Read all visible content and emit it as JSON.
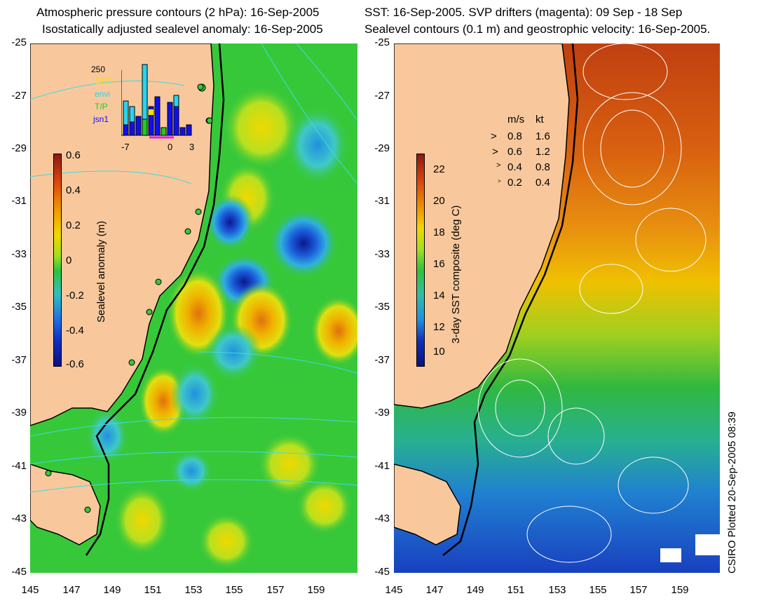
{
  "left_panel": {
    "title_line1": "Atmospheric pressure contours (2 hPa): 16-Sep-2005",
    "title_line2": "Isostatically adjusted sealevel anomaly: 16-Sep-2005",
    "colorbar": {
      "label": "Sealevel anomaly (m)",
      "ticks": [
        "0.6",
        "0.4",
        "0.2",
        "0",
        "-0.2",
        "-0.4",
        "-0.6"
      ]
    },
    "histogram": {
      "count_label": "250",
      "legend": [
        {
          "label": "GFO",
          "color": "#f5e000"
        },
        {
          "label": "envi",
          "color": "#29d4f0"
        },
        {
          "label": "T/P",
          "color": "#22cc22"
        },
        {
          "label": "jsn1",
          "color": "#1010ee"
        }
      ],
      "x_ticks": [
        "-7",
        "0",
        "3"
      ]
    }
  },
  "right_panel": {
    "title_line1": "SST: 16-Sep-2005. SVP drifters (magenta): 09 Sep - 18 Sep",
    "title_line2": "Sealevel contours (0.1 m) and geostrophic velocity: 16-Sep-2005.",
    "colorbar": {
      "label": "3-day SST composite (deg C)",
      "ticks": [
        "22",
        "20",
        "18",
        "16",
        "14",
        "12",
        "10"
      ]
    },
    "velocity_legend": {
      "header_ms": "m/s",
      "header_kt": "kt",
      "rows": [
        {
          "ms": "0.8",
          "kt": "1.6"
        },
        {
          "ms": "0.6",
          "kt": "1.2"
        },
        {
          "ms": "0.4",
          "kt": "0.8"
        },
        {
          "ms": "0.2",
          "kt": "0.4"
        }
      ]
    }
  },
  "axes": {
    "lat_ticks": [
      "-25",
      "-27",
      "-29",
      "-31",
      "-33",
      "-35",
      "-37",
      "-39",
      "-41",
      "-43",
      "-45"
    ],
    "lon_ticks": [
      "145",
      "147",
      "149",
      "151",
      "153",
      "155",
      "157",
      "159"
    ]
  },
  "footer_note": "CSIRO Plotted 20-Sep-2005 08:39",
  "colors": {
    "land": "#f8c89c",
    "coast": "#000000"
  }
}
